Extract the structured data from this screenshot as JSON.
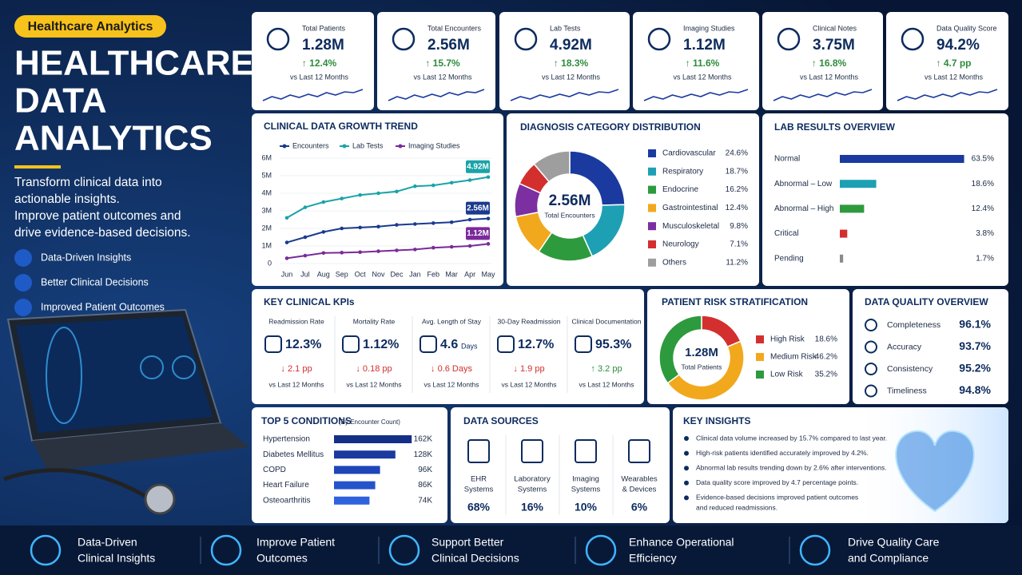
{
  "tag": "Healthcare Analytics",
  "title": [
    "HEALTHCARE",
    "DATA",
    "ANALYTICS"
  ],
  "intro": [
    "Transform clinical data into",
    "actionable insights.",
    "Improve patient outcomes and",
    "drive evidence-based decisions."
  ],
  "benefits": [
    "Data-Driven Insights",
    "Better Clinical Decisions",
    "Improved Patient Outcomes"
  ],
  "kpis": [
    {
      "label": "Total Patients",
      "value": "1.28M",
      "change": "↑ 12.4%",
      "period": "vs Last 12 Months"
    },
    {
      "label": "Total Encounters",
      "value": "2.56M",
      "change": "↑ 15.7%",
      "period": "vs Last 12 Months"
    },
    {
      "label": "Lab Tests",
      "value": "4.92M",
      "change": "↑ 18.3%",
      "period": "vs Last 12 Months"
    },
    {
      "label": "Imaging Studies",
      "value": "1.12M",
      "change": "↑ 11.6%",
      "period": "vs Last 12 Months"
    },
    {
      "label": "Clinical Notes",
      "value": "3.75M",
      "change": "↑ 16.8%",
      "period": "vs Last 12 Months"
    },
    {
      "label": "Data Quality Score",
      "value": "94.2%",
      "change": "↑ 4.7 pp",
      "period": "vs Last 12 Months"
    }
  ],
  "growth": {
    "type": "line",
    "title": "CLINICAL DATA GROWTH TREND",
    "categories": [
      "Jun",
      "Jul",
      "Aug",
      "Sep",
      "Oct",
      "Nov",
      "Dec",
      "Jan",
      "Feb",
      "Mar",
      "Apr",
      "May"
    ],
    "series": [
      {
        "name": "Encounters",
        "color": "#1a3a8f",
        "values": [
          1.2,
          1.5,
          1.8,
          2.0,
          2.05,
          2.1,
          2.2,
          2.25,
          2.3,
          2.35,
          2.5,
          2.56
        ],
        "end_label": "2.56M"
      },
      {
        "name": "Lab Tests",
        "color": "#1aa3a8",
        "values": [
          2.6,
          3.2,
          3.5,
          3.7,
          3.9,
          4.0,
          4.1,
          4.4,
          4.45,
          4.6,
          4.75,
          4.92
        ],
        "end_label": "4.92M"
      },
      {
        "name": "Imaging Studies",
        "color": "#7a2a9a",
        "values": [
          0.3,
          0.45,
          0.6,
          0.62,
          0.65,
          0.7,
          0.75,
          0.8,
          0.9,
          0.95,
          1.0,
          1.12
        ],
        "end_label": "1.12M"
      }
    ],
    "ylim": [
      0,
      6
    ],
    "yticks": [
      0,
      {
        "value": 1,
        "label": "1M"
      },
      {
        "value": 2,
        "label": "2M"
      },
      {
        "value": 3,
        "label": "3M"
      },
      {
        "value": 4,
        "label": "4M"
      },
      {
        "value": 5,
        "label": "5M"
      },
      {
        "value": 6,
        "label": "6M"
      }
    ]
  },
  "diagnosis": {
    "type": "pie",
    "title": "DIAGNOSIS CATEGORY DISTRIBUTION",
    "center_value": "2.56M",
    "center_label": "Total Encounters",
    "categories": [
      "Cardiovascular",
      "Respiratory",
      "Endocrine",
      "Gastrointestinal",
      "Musculoskeletal",
      "Neurology",
      "Others"
    ],
    "values": [
      24.6,
      18.7,
      16.2,
      12.4,
      9.8,
      7.1,
      11.2
    ],
    "value_labels": [
      "24.6%",
      "18.7%",
      "16.2%",
      "12.4%",
      "9.8%",
      "7.1%",
      "11.2%"
    ],
    "colors": [
      "#1a3aa0",
      "#1ea0b4",
      "#2e9a3e",
      "#f2a81d",
      "#7b2fa0",
      "#d32f2f",
      "#9e9e9e"
    ]
  },
  "lab": {
    "type": "bar",
    "title": "LAB RESULTS OVERVIEW",
    "categories": [
      "Normal",
      "Abnormal – Low",
      "Abnormal – High",
      "Critical",
      "Pending"
    ],
    "values": [
      63.5,
      18.6,
      12.4,
      3.8,
      1.7
    ],
    "value_labels": [
      "63.5%",
      "18.6%",
      "12.4%",
      "3.8%",
      "1.7%"
    ],
    "colors": [
      "#1a3aa0",
      "#1ea0b4",
      "#2e9a3e",
      "#d32f2f",
      "#8a8a8a"
    ]
  },
  "clinical_kpis": {
    "title": "KEY CLINICAL KPIs",
    "items": [
      {
        "label": "Readmission Rate",
        "value": "12.3%",
        "change": "↓ 2.1 pp",
        "period": "vs Last 12 Months",
        "color": "#d32f2f"
      },
      {
        "label": "Mortality Rate",
        "value": "1.12%",
        "change": "↓ 0.18 pp",
        "period": "vs Last 12 Months",
        "color": "#d32f2f"
      },
      {
        "label": "Avg. Length of Stay",
        "value": "4.6",
        "unit": "Days",
        "change": "↓ 0.6 Days",
        "period": "vs Last 12 Months",
        "color": "#d32f2f"
      },
      {
        "label": "30-Day Readmission",
        "value": "12.7%",
        "change": "↓ 1.9 pp",
        "period": "vs Last 12 Months",
        "color": "#d32f2f"
      },
      {
        "label": "Clinical Documentation",
        "value": "95.3%",
        "change": "↑ 3.2 pp",
        "period": "vs Last 12 Months",
        "color": "#2e8b3e"
      }
    ]
  },
  "risk": {
    "type": "pie",
    "title": "PATIENT RISK STRATIFICATION",
    "center_value": "1.28M",
    "center_label": "Total Patients",
    "categories": [
      "High Risk",
      "Medium Risk",
      "Low Risk"
    ],
    "values": [
      18.6,
      46.2,
      35.2
    ],
    "value_labels": [
      "18.6%",
      "46.2%",
      "35.2%"
    ],
    "colors": [
      "#d32f2f",
      "#f2a81d",
      "#2e9a3e"
    ]
  },
  "data_quality": {
    "title": "DATA QUALITY OVERVIEW",
    "items": [
      {
        "name": "Completeness",
        "value": "96.1%"
      },
      {
        "name": "Accuracy",
        "value": "93.7%"
      },
      {
        "name": "Consistency",
        "value": "95.2%"
      },
      {
        "name": "Timeliness",
        "value": "94.8%"
      }
    ]
  },
  "top5": {
    "type": "bar",
    "title": "TOP 5 CONDITIONS",
    "subtitle": "(By Encounter Count)",
    "categories": [
      "Hypertension",
      "Diabetes Mellitus",
      "COPD",
      "Heart Failure",
      "Osteoarthritis"
    ],
    "values": [
      162,
      128,
      96,
      86,
      74
    ],
    "value_labels": [
      "162K",
      "128K",
      "96K",
      "86K",
      "74K"
    ],
    "colors": [
      "#142f86",
      "#1a3aa0",
      "#1f46b8",
      "#2553cc",
      "#2f62dd"
    ]
  },
  "data_sources": {
    "title": "DATA SOURCES",
    "items": [
      {
        "name_lines": [
          "EHR",
          "Systems"
        ],
        "share": "68%"
      },
      {
        "name_lines": [
          "Laboratory",
          "Systems"
        ],
        "share": "16%"
      },
      {
        "name_lines": [
          "Imaging",
          "Systems"
        ],
        "share": "10%"
      },
      {
        "name_lines": [
          "Wearables",
          "& Devices"
        ],
        "share": "6%"
      }
    ]
  },
  "insights": {
    "title": "KEY INSIGHTS",
    "items": [
      [
        "Clinical data volume increased by 15.7% compared to last year."
      ],
      [
        "High-risk patients identified accurately improved by 4.2%."
      ],
      [
        "Abnormal lab results trending down by 2.6% after interventions."
      ],
      [
        "Data quality score improved by 4.7 percentage points."
      ],
      [
        "Evidence-based decisions improved patient outcomes",
        "and reduced readmissions."
      ]
    ]
  },
  "footer": [
    [
      "Data-Driven",
      "Clinical Insights"
    ],
    [
      "Improve Patient",
      "Outcomes"
    ],
    [
      "Support Better",
      "Clinical Decisions"
    ],
    [
      "Enhance Operational",
      "Efficiency"
    ],
    [
      "Drive Quality Care",
      "and Compliance"
    ]
  ]
}
